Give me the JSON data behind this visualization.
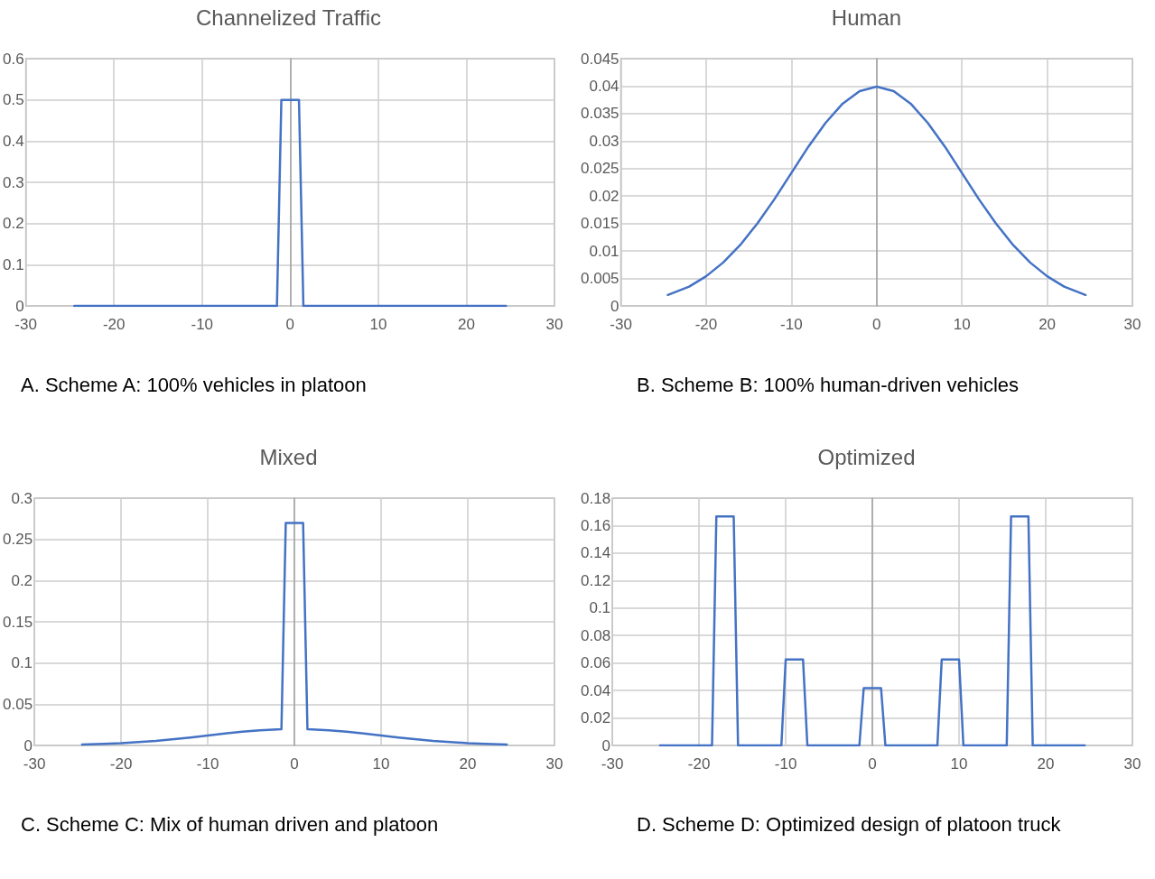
{
  "chart_data": [
    {
      "type": "line",
      "title": "Channelized Traffic",
      "annotations": [
        "A. Scheme A: 100% vehicles in platoon"
      ],
      "marker": "none",
      "grid": true,
      "line_style": "solid",
      "xlim": [
        -30,
        30
      ],
      "xticks": [
        -30,
        -20,
        -10,
        0,
        10,
        20,
        30
      ],
      "ylim": [
        0,
        0.6
      ],
      "yticks": [
        0,
        0.1,
        0.2,
        0.3,
        0.4,
        0.5,
        0.6
      ],
      "series": [
        {
          "color": "#4472c4",
          "x": [
            -24.5,
            -1.5,
            -1,
            1,
            1.5,
            24.5
          ],
          "values": [
            0,
            0,
            0.5,
            0.5,
            0,
            0
          ]
        }
      ]
    },
    {
      "type": "line",
      "title": "Human",
      "annotations": [
        "B. Scheme B: 100% human-driven vehicles"
      ],
      "marker": "none",
      "grid": true,
      "line_style": "solid",
      "xlim": [
        -30,
        30
      ],
      "xticks": [
        -30,
        -20,
        -10,
        0,
        10,
        20,
        30
      ],
      "ylim": [
        0,
        0.045
      ],
      "yticks": [
        0,
        0.005,
        0.01,
        0.015,
        0.02,
        0.025,
        0.03,
        0.035,
        0.04,
        0.045
      ],
      "series": [
        {
          "color": "#4472c4",
          "x": [
            -24.5,
            -22,
            -20,
            -18,
            -16,
            -14,
            -12,
            -10,
            -8,
            -6,
            -4,
            -2,
            0,
            2,
            4,
            6,
            8,
            10,
            12,
            14,
            16,
            18,
            20,
            22,
            24.5
          ],
          "values": [
            0.002,
            0.0035,
            0.0054,
            0.0079,
            0.0111,
            0.015,
            0.0194,
            0.0242,
            0.029,
            0.0333,
            0.0368,
            0.0391,
            0.0399,
            0.0391,
            0.0368,
            0.0333,
            0.029,
            0.0242,
            0.0194,
            0.015,
            0.0111,
            0.0079,
            0.0054,
            0.0035,
            0.002
          ]
        }
      ]
    },
    {
      "type": "line",
      "title": "Mixed",
      "annotations": [
        "C. Scheme C: Mix of human driven and platoon"
      ],
      "marker": "none",
      "grid": true,
      "line_style": "solid",
      "xlim": [
        -30,
        30
      ],
      "xticks": [
        -30,
        -20,
        -10,
        0,
        10,
        20,
        30
      ],
      "ylim": [
        0,
        0.3
      ],
      "yticks": [
        0,
        0.05,
        0.1,
        0.15,
        0.2,
        0.25,
        0.3
      ],
      "series": [
        {
          "color": "#4472c4",
          "x": [
            -24.5,
            -22,
            -20,
            -16,
            -12,
            -10,
            -8,
            -6,
            -4,
            -1.5,
            -1,
            1,
            1.5,
            4,
            6,
            8,
            10,
            12,
            16,
            20,
            22,
            24.5
          ],
          "values": [
            0.001,
            0.0018,
            0.0027,
            0.0056,
            0.0097,
            0.0121,
            0.0145,
            0.0167,
            0.0184,
            0.0197,
            0.27,
            0.27,
            0.0197,
            0.0184,
            0.0167,
            0.0145,
            0.0121,
            0.0097,
            0.0056,
            0.0027,
            0.0018,
            0.001
          ]
        }
      ]
    },
    {
      "type": "line",
      "title": "Optimized",
      "annotations": [
        "D. Scheme D: Optimized design of platoon truck"
      ],
      "marker": "none",
      "grid": true,
      "line_style": "solid",
      "xlim": [
        -30,
        30
      ],
      "xticks": [
        -30,
        -20,
        -10,
        0,
        10,
        20,
        30
      ],
      "ylim": [
        0,
        0.18
      ],
      "yticks": [
        0,
        0.02,
        0.04,
        0.06,
        0.08,
        0.1,
        0.12,
        0.14,
        0.16,
        0.18
      ],
      "series": [
        {
          "color": "#4472c4",
          "x": [
            -24.5,
            -18.5,
            -18,
            -16,
            -15.5,
            -10.5,
            -10,
            -8,
            -7.5,
            -1.5,
            -1,
            1,
            1.5,
            7.5,
            8,
            10,
            10.5,
            15.5,
            16,
            18,
            18.5,
            24.5
          ],
          "values": [
            0,
            0,
            0.1667,
            0.1667,
            0,
            0,
            0.0625,
            0.0625,
            0,
            0,
            0.0417,
            0.0417,
            0,
            0,
            0.0625,
            0.0625,
            0,
            0,
            0.1667,
            0.1667,
            0,
            0
          ]
        }
      ]
    }
  ]
}
